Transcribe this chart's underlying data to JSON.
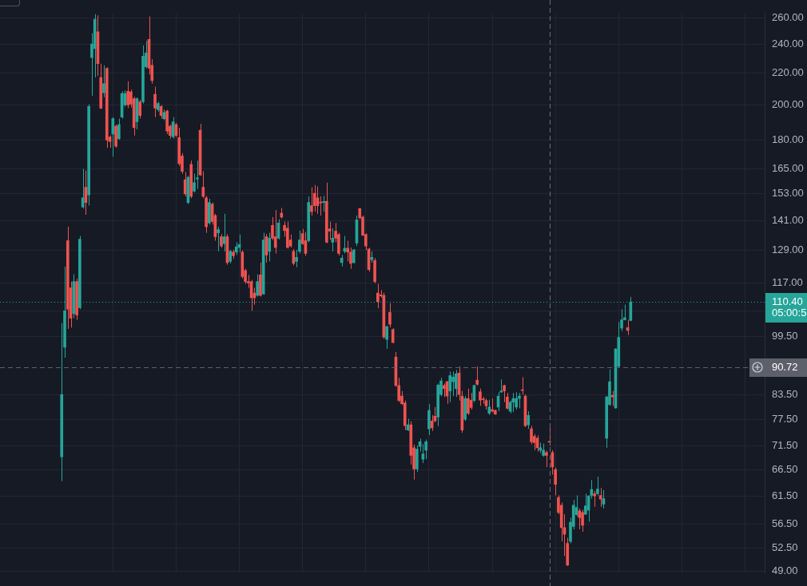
{
  "chart_data": {
    "type": "candlestick",
    "categories": [
      null,
      null,
      null,
      null,
      null,
      null,
      null,
      null,
      null,
      null,
      null,
      null,
      null,
      null,
      null,
      null,
      null,
      null,
      null,
      null,
      null,
      null,
      null,
      null,
      null,
      null,
      null,
      null,
      null,
      null,
      null,
      null,
      null,
      null,
      null,
      null,
      null,
      null,
      null,
      null,
      null,
      null,
      null,
      null,
      null,
      null,
      null,
      null,
      null,
      null,
      null,
      null,
      null,
      null,
      null,
      null,
      null,
      null,
      null,
      null,
      null,
      null,
      null,
      null,
      null,
      null,
      null,
      null,
      null,
      null,
      null,
      null,
      null,
      null,
      null,
      null,
      null,
      null,
      null,
      null,
      null,
      null,
      null,
      null,
      null,
      null,
      null,
      null,
      null,
      null,
      null,
      null,
      null,
      null,
      null,
      null,
      null,
      null,
      null,
      null,
      null,
      null,
      null,
      null,
      null,
      null,
      null,
      null,
      null,
      null,
      null,
      null,
      null,
      null,
      null,
      null,
      null,
      null,
      null,
      null,
      null,
      null,
      null,
      null,
      null,
      null,
      null,
      null,
      null,
      null,
      null,
      null,
      null,
      null,
      null,
      null,
      null,
      null,
      null,
      null,
      null,
      null,
      null,
      null,
      null,
      null,
      null,
      null,
      null,
      null,
      null,
      null,
      null,
      null,
      null,
      null,
      null,
      null,
      null,
      null,
      null,
      null,
      null,
      null,
      null,
      null,
      null,
      null,
      null,
      null,
      null,
      null,
      null,
      null,
      null,
      null,
      null,
      null,
      null,
      null,
      null,
      null,
      null,
      null,
      null,
      null,
      null,
      null,
      null,
      null,
      null,
      null,
      null,
      null,
      null,
      null,
      null,
      null,
      null,
      null,
      null,
      null,
      null,
      null,
      null,
      null,
      null,
      null,
      null,
      null,
      null,
      null,
      null,
      null,
      null,
      null,
      null,
      null,
      null,
      null,
      null,
      null,
      null,
      null,
      null,
      null,
      null,
      null,
      null,
      null,
      null,
      null,
      null,
      null,
      null,
      null,
      null,
      null,
      null,
      null,
      null,
      null,
      null,
      null,
      null,
      null,
      null,
      null,
      null,
      null,
      null,
      null,
      null,
      null
    ],
    "ohlc": [
      null,
      null,
      null,
      null,
      null,
      null,
      null,
      null,
      null,
      null,
      null,
      null,
      null,
      null,
      null,
      null,
      null,
      null,
      null,
      null,
      [
        69.2,
        103.6,
        64.3,
        83.5
      ],
      [
        96.3,
        122.8,
        93.3,
        107.5
      ],
      [
        132.8,
        138.5,
        101.8,
        108.0
      ],
      [
        115.2,
        117.4,
        102.2,
        105.1
      ],
      [
        106.6,
        120.0,
        105.1,
        117.4
      ],
      [
        117.4,
        118.4,
        104.6,
        106.1
      ],
      [
        108.5,
        134.7,
        108.0,
        133.4
      ],
      [
        147.0,
        164.9,
        146.3,
        151.1
      ],
      [
        156.0,
        164.1,
        143.6,
        149.0
      ],
      [
        152.5,
        200.5,
        147.6,
        199.1
      ],
      [
        230.7,
        248.3,
        205.6,
        240.4
      ],
      [
        237.1,
        263.0,
        217.3,
        259.0
      ],
      [
        249.4,
        262.0,
        218.3,
        226.5
      ],
      [
        217.3,
        226.5,
        197.5,
        198.1
      ],
      [
        207.5,
        225.4,
        204.7,
        213.3
      ],
      [
        223.4,
        224.0,
        175.8,
        179.9
      ],
      [
        181.6,
        182.5,
        175.8,
        179.1
      ],
      [
        183.2,
        192.8,
        171.1,
        191.9
      ],
      [
        187.6,
        188.5,
        175.8,
        176.6
      ],
      [
        180.7,
        191.9,
        180.0,
        188.5
      ],
      [
        192.8,
        208.4,
        191.9,
        207.0
      ],
      [
        200.0,
        209.0,
        199.0,
        207.0
      ],
      [
        208.4,
        214.8,
        198.1,
        200.0
      ],
      [
        208.0,
        209.5,
        198.5,
        200.5
      ],
      [
        203.8,
        205.0,
        182.4,
        186.7
      ],
      [
        190.1,
        204.5,
        185.8,
        203.8
      ],
      [
        201.9,
        203.0,
        192.0,
        193.7
      ],
      [
        201.9,
        239.3,
        200.9,
        231.7
      ],
      [
        224.4,
        242.6,
        223.4,
        233.9
      ],
      [
        243.7,
        261.2,
        219.3,
        223.4
      ],
      [
        225.4,
        229.6,
        213.3,
        215.3
      ],
      [
        206.6,
        211.3,
        192.8,
        198.1
      ],
      [
        197.2,
        202.0,
        196.0,
        200.9
      ],
      [
        199.1,
        200.0,
        191.9,
        193.7
      ],
      [
        191.9,
        197.2,
        191.0,
        195.5
      ],
      [
        196.4,
        197.0,
        183.2,
        184.9
      ],
      [
        187.6,
        188.5,
        180.7,
        182.4
      ],
      [
        181.6,
        192.8,
        180.7,
        190.1
      ],
      [
        188.5,
        189.5,
        181.5,
        182.4
      ],
      [
        181.2,
        186.7,
        166.4,
        167.6
      ],
      [
        171.5,
        173.0,
        162.5,
        163.7
      ],
      [
        159.6,
        163.4,
        151.8,
        152.9
      ],
      [
        149.0,
        161.5,
        148.3,
        160.8
      ],
      [
        167.2,
        169.1,
        151.0,
        151.8
      ],
      [
        154.2,
        162.6,
        153.6,
        158.2
      ],
      [
        160.0,
        169.1,
        155.3,
        160.5
      ],
      [
        185.3,
        188.9,
        161.5,
        161.9
      ],
      [
        156.0,
        163.7,
        151.1,
        151.8
      ],
      [
        151.1,
        152.0,
        136.0,
        138.5
      ],
      [
        140.1,
        150.7,
        139.4,
        149.0
      ],
      [
        148.3,
        149.0,
        139.4,
        140.7
      ],
      [
        143.3,
        144.0,
        132.8,
        134.4
      ],
      [
        136.0,
        138.5,
        128.6,
        137.3
      ],
      [
        134.4,
        135.5,
        130.0,
        130.7
      ],
      [
        131.6,
        144.0,
        128.6,
        134.4
      ],
      [
        134.4,
        135.5,
        123.5,
        124.3
      ],
      [
        124.8,
        129.2,
        124.0,
        128.6
      ],
      [
        128.3,
        129.2,
        125.7,
        126.9
      ],
      [
        128.3,
        132.2,
        127.2,
        130.4
      ],
      [
        130.1,
        135.3,
        128.3,
        131.3
      ],
      [
        128.3,
        129.0,
        118.5,
        119.2
      ],
      [
        121.4,
        122.0,
        116.6,
        117.4
      ],
      [
        117.4,
        119.8,
        115.2,
        116.9
      ],
      [
        117.4,
        118.0,
        107.5,
        111.8
      ],
      [
        113.4,
        115.2,
        109.5,
        111.8
      ],
      [
        112.6,
        120.0,
        112.2,
        117.4
      ],
      [
        119.8,
        124.3,
        112.2,
        112.6
      ],
      [
        113.1,
        136.0,
        112.8,
        133.1
      ],
      [
        134.4,
        135.5,
        124.3,
        127.2
      ],
      [
        128.6,
        136.0,
        124.8,
        133.8
      ],
      [
        139.1,
        142.6,
        133.1,
        133.8
      ],
      [
        134.4,
        145.7,
        127.8,
        130.1
      ],
      [
        133.8,
        141.7,
        133.3,
        140.1
      ],
      [
        144.3,
        146.6,
        142.0,
        142.6
      ],
      [
        139.1,
        140.7,
        134.4,
        136.9
      ],
      [
        137.9,
        140.7,
        129.7,
        130.1
      ],
      [
        133.1,
        135.3,
        130.1,
        130.7
      ],
      [
        128.6,
        129.5,
        123.3,
        124.0
      ],
      [
        124.8,
        129.2,
        122.6,
        126.3
      ],
      [
        128.6,
        136.9,
        127.8,
        133.1
      ],
      [
        135.7,
        137.6,
        131.2,
        131.6
      ],
      [
        132.8,
        136.4,
        126.9,
        127.8
      ],
      [
        132.8,
        151.8,
        132.2,
        149.0
      ],
      [
        147.6,
        156.0,
        143.3,
        145.0
      ],
      [
        153.2,
        157.1,
        145.0,
        147.6
      ],
      [
        151.1,
        156.4,
        144.0,
        147.6
      ],
      [
        149.2,
        151.8,
        143.3,
        148.8
      ],
      [
        149.0,
        152.0,
        145.0,
        149.5
      ],
      [
        149.6,
        158.2,
        131.8,
        132.2
      ],
      [
        137.6,
        140.7,
        133.1,
        136.7
      ],
      [
        132.2,
        137.9,
        128.6,
        133.8
      ],
      [
        136.7,
        140.1,
        132.2,
        133.8
      ],
      [
        135.3,
        136.0,
        127.0,
        127.8
      ],
      [
        124.3,
        127.2,
        122.9,
        126.0
      ],
      [
        128.6,
        134.7,
        127.8,
        129.8
      ],
      [
        129.8,
        132.8,
        124.8,
        128.3
      ],
      [
        128.3,
        130.1,
        122.0,
        124.0
      ],
      [
        124.3,
        129.5,
        124.0,
        129.2
      ],
      [
        131.9,
        143.3,
        130.7,
        141.4
      ],
      [
        146.3,
        146.6,
        141.7,
        142.3
      ],
      [
        142.6,
        143.3,
        134.7,
        135.0
      ],
      [
        135.3,
        135.8,
        129.2,
        130.7
      ],
      [
        129.5,
        130.0,
        121.0,
        121.7
      ],
      [
        125.4,
        128.6,
        124.3,
        126.3
      ],
      [
        125.1,
        126.0,
        116.8,
        117.4
      ],
      [
        113.4,
        116.6,
        108.3,
        110.5
      ],
      [
        112.8,
        114.4,
        111.8,
        112.4
      ],
      [
        112.6,
        113.5,
        98.8,
        99.3
      ],
      [
        98.6,
        102.7,
        95.8,
        102.5
      ],
      [
        107.0,
        110.0,
        102.2,
        103.2
      ],
      [
        101.6,
        102.0,
        97.4,
        97.7
      ],
      [
        93.5,
        94.9,
        85.5,
        85.8
      ],
      [
        85.8,
        87.8,
        81.6,
        82.0
      ],
      [
        83.1,
        84.4,
        80.9,
        81.2
      ],
      [
        81.4,
        82.0,
        75.0,
        76.0
      ],
      [
        75.0,
        77.6,
        74.8,
        76.2
      ],
      [
        76.2,
        77.0,
        67.6,
        69.5
      ],
      [
        71.1,
        71.8,
        64.6,
        66.7
      ],
      [
        66.7,
        71.6,
        66.1,
        70.8
      ],
      [
        71.4,
        73.1,
        70.3,
        72.4
      ],
      [
        68.7,
        71.9,
        67.9,
        69.8
      ],
      [
        70.6,
        72.9,
        68.7,
        72.4
      ],
      [
        75.3,
        81.1,
        73.9,
        79.6
      ],
      [
        77.1,
        78.5,
        74.8,
        75.5
      ],
      [
        78.2,
        80.4,
        76.8,
        77.1
      ],
      [
        78.0,
        86.3,
        75.9,
        85.9
      ],
      [
        83.5,
        87.8,
        83.1,
        87.0
      ],
      [
        85.8,
        86.3,
        82.9,
        85.0
      ],
      [
        86.8,
        87.0,
        81.2,
        83.1
      ],
      [
        84.4,
        89.5,
        81.6,
        88.4
      ],
      [
        86.8,
        89.5,
        83.1,
        88.0
      ],
      [
        85.0,
        89.9,
        82.9,
        88.9
      ],
      [
        89.1,
        90.9,
        82.0,
        83.5
      ],
      [
        83.1,
        84.4,
        74.4,
        75.0
      ],
      [
        77.5,
        83.1,
        77.1,
        82.5
      ],
      [
        82.5,
        85.0,
        78.5,
        78.9
      ],
      [
        82.1,
        83.9,
        79.8,
        80.3
      ],
      [
        82.0,
        86.0,
        81.6,
        85.8
      ],
      [
        87.2,
        90.9,
        85.8,
        86.1
      ],
      [
        84.2,
        85.0,
        80.7,
        82.1
      ],
      [
        82.4,
        82.9,
        81.2,
        82.2
      ],
      [
        82.0,
        82.5,
        79.8,
        80.7
      ],
      [
        78.9,
        82.2,
        78.5,
        80.4
      ],
      [
        79.8,
        82.5,
        79.2,
        79.4
      ],
      [
        79.6,
        79.8,
        78.5,
        78.7
      ],
      [
        80.4,
        84.1,
        79.4,
        83.1
      ],
      [
        84.1,
        87.4,
        84.0,
        84.4
      ],
      [
        85.8,
        86.0,
        81.6,
        84.4
      ],
      [
        82.9,
        83.9,
        79.8,
        80.1
      ],
      [
        79.4,
        82.0,
        78.9,
        81.6
      ],
      [
        81.6,
        83.9,
        79.2,
        82.5
      ],
      [
        80.4,
        84.1,
        79.8,
        82.5
      ],
      [
        82.5,
        83.9,
        80.1,
        83.1
      ],
      [
        84.7,
        88.0,
        83.5,
        84.5
      ],
      [
        83.1,
        83.5,
        75.7,
        76.0
      ],
      [
        76.2,
        79.4,
        75.3,
        78.4
      ],
      [
        75.3,
        76.0,
        71.9,
        72.4
      ],
      [
        73.6,
        74.1,
        70.6,
        72.2
      ],
      [
        73.2,
        73.8,
        70.3,
        71.1
      ],
      [
        70.6,
        72.2,
        70.0,
        71.1
      ],
      [
        69.5,
        72.0,
        69.2,
        70.6
      ],
      [
        70.1,
        70.5,
        67.1,
        69.5
      ],
      [
        72.5,
        75.7,
        71.6,
        72.3
      ],
      [
        70.1,
        70.6,
        65.6,
        67.1
      ],
      [
        66.6,
        67.0,
        61.6,
        63.7
      ],
      [
        61.2,
        61.6,
        58.2,
        58.5
      ],
      [
        59.8,
        60.3,
        53.6,
        55.9
      ],
      [
        55.9,
        58.2,
        51.3,
        54.8
      ],
      [
        53.3,
        54.2,
        49.8,
        49.9
      ],
      [
        53.6,
        57.6,
        53.3,
        56.8
      ],
      [
        56.1,
        60.8,
        55.6,
        59.8
      ],
      [
        58.1,
        61.6,
        57.8,
        59.4
      ],
      [
        58.8,
        59.2,
        55.6,
        57.6
      ],
      [
        58.5,
        59.0,
        55.2,
        56.3
      ],
      [
        58.2,
        61.9,
        58.1,
        59.7
      ],
      [
        58.9,
        61.6,
        56.9,
        61.5
      ],
      [
        61.6,
        64.5,
        61.0,
        62.7
      ],
      [
        61.9,
        62.4,
        59.5,
        61.5
      ],
      [
        61.9,
        65.2,
        61.6,
        62.8
      ],
      [
        61.6,
        63.0,
        59.5,
        60.9
      ],
      [
        60.0,
        62.6,
        59.2,
        61.0
      ],
      [
        73.2,
        83.1,
        71.1,
        82.9
      ],
      [
        81.0,
        90.1,
        80.7,
        86.8
      ],
      [
        83.3,
        84.4,
        80.7,
        82.9
      ],
      [
        80.2,
        96.0,
        80.0,
        95.8
      ],
      [
        90.9,
        103.9,
        90.7,
        99.2
      ],
      [
        102.0,
        108.0,
        101.1,
        104.6
      ],
      [
        104.6,
        109.5,
        104.4,
        105.3
      ],
      [
        102.2,
        104.6,
        99.9,
        101.3
      ],
      [
        104.4,
        112.1,
        104.2,
        110.4
      ],
      null,
      null,
      null,
      null,
      null,
      null,
      null,
      null,
      null,
      null,
      null,
      null,
      null,
      null,
      null,
      null,
      null,
      null,
      null,
      null,
      null,
      null,
      null,
      null,
      null,
      null,
      null,
      null,
      null,
      null,
      null,
      null,
      null,
      null,
      null,
      null,
      null,
      null,
      null,
      null,
      null,
      null,
      null,
      null
    ],
    "colors": [
      null,
      null,
      null,
      null,
      null,
      null,
      null,
      null,
      null,
      null,
      null,
      null,
      null,
      null,
      null,
      null,
      null,
      null,
      null,
      null,
      "#26a69a",
      "#26a69a",
      "#ef5350",
      "#ef5350",
      "#26a69a",
      "#ef5350",
      "#26a69a",
      "#26a69a",
      "#ef5350",
      "#26a69a",
      "#26a69a",
      "#26a69a",
      "#ef5350",
      "#ef5350",
      "#26a69a",
      "#ef5350",
      "#ef5350",
      "#26a69a",
      "#ef5350",
      "#26a69a",
      "#26a69a",
      "#26a69a",
      "#ef5350",
      "#ef5350",
      "#ef5350",
      "#26a69a",
      "#ef5350",
      "#26a69a",
      "#26a69a",
      "#ef5350",
      "#ef5350",
      "#ef5350",
      "#26a69a",
      "#ef5350",
      "#26a69a",
      "#ef5350",
      "#ef5350",
      "#26a69a",
      "#ef5350",
      "#ef5350",
      "#ef5350",
      "#ef5350",
      "#26a69a",
      "#ef5350",
      "#26a69a",
      "#26a69a",
      "#ef5350",
      "#ef5350",
      "#ef5350",
      "#26a69a",
      "#ef5350",
      "#ef5350",
      "#26a69a",
      "#ef5350",
      "#26a69a",
      "#ef5350",
      "#26a69a",
      "#ef5350",
      "#26a69a",
      "#26a69a",
      "#ef5350",
      "#ef5350",
      "#ef5350",
      "#ef5350",
      "#ef5350",
      "#26a69a",
      "#ef5350",
      "#26a69a",
      "#ef5350",
      "#26a69a",
      "#ef5350",
      "#ef5350",
      "#26a69a",
      "#ef5350",
      "#ef5350",
      "#ef5350",
      "#ef5350",
      "#ef5350",
      "#26a69a",
      "#26a69a",
      "#ef5350",
      "#ef5350",
      "#26a69a",
      "#ef5350",
      "#ef5350",
      "#ef5350",
      "#ef5350",
      "#26a69a",
      "#ef5350",
      "#ef5350",
      "#26a69a",
      "#ef5350",
      "#ef5350",
      "#26a69a",
      "#26a69a",
      "#ef5350",
      "#ef5350",
      "#26a69a",
      "#26a69a",
      "#ef5350",
      "#ef5350",
      "#ef5350",
      "#ef5350",
      "#26a69a",
      "#ef5350",
      "#ef5350",
      "#ef5350",
      "#ef5350",
      "#26a69a",
      "#ef5350",
      "#ef5350",
      "#ef5350",
      "#ef5350",
      "#ef5350",
      "#ef5350",
      "#26a69a",
      "#ef5350",
      "#ef5350",
      "#26a69a",
      "#26a69a",
      "#26a69a",
      "#26a69a",
      "#26a69a",
      "#ef5350",
      "#ef5350",
      "#26a69a",
      "#26a69a",
      "#ef5350",
      "#ef5350",
      "#26a69a",
      "#26a69a",
      "#26a69a",
      "#ef5350",
      "#ef5350",
      "#26a69a",
      "#ef5350",
      "#ef5350",
      "#26a69a",
      "#ef5350",
      "#ef5350",
      "#ef5350",
      "#ef5350",
      "#26a69a",
      "#ef5350",
      "#ef5350",
      "#26a69a",
      "#26a69a",
      "#ef5350",
      "#ef5350",
      "#26a69a",
      "#26a69a",
      "#26a69a",
      "#26a69a",
      "#ef5350",
      "#ef5350",
      "#26a69a",
      "#ef5350",
      "#ef5350",
      "#ef5350",
      "#26a69a",
      "#26a69a",
      "#ef5350",
      "#ef5350",
      "#ef5350",
      "#ef5350",
      "#ef5350",
      "#ef5350",
      "#ef5350",
      "#ef5350",
      "#26a69a",
      "#26a69a",
      "#26a69a",
      "#ef5350",
      "#ef5350",
      "#26a69a",
      "#26a69a",
      "#26a69a",
      "#ef5350",
      "#26a69a",
      "#ef5350",
      "#26a69a",
      "#26a69a",
      "#26a69a",
      "#ef5350",
      "#26a69a",
      "#26a69a",
      "#26a69a",
      "#26a69a",
      "#ef5350",
      "#26a69a",
      null,
      null,
      null,
      null,
      null,
      null,
      null,
      null,
      null,
      null,
      null,
      null,
      null,
      null,
      null,
      null,
      null,
      null,
      null,
      null,
      null,
      null,
      null,
      null,
      null,
      null,
      null,
      null,
      null,
      null,
      null,
      null,
      null,
      null,
      null,
      null,
      null,
      null,
      null,
      null,
      null,
      null,
      null,
      null
    ],
    "log": true,
    "ylim": [
      48.8,
      263.6
    ],
    "yticks": [
      {
        "value": 49,
        "label": "49.00"
      },
      {
        "value": 52.5,
        "label": "52.50"
      },
      {
        "value": 56.5,
        "label": "56.50"
      },
      {
        "value": 61.5,
        "label": "61.50"
      },
      {
        "value": 66.5,
        "label": "66.50"
      },
      {
        "value": 71.5,
        "label": "71.50"
      },
      {
        "value": 77.5,
        "label": "77.50"
      },
      {
        "value": 83.5,
        "label": "83.50"
      },
      {
        "value": 99.5,
        "label": "99.50"
      },
      {
        "value": 107.5,
        "label": null
      },
      {
        "value": 117,
        "label": "117.00"
      },
      {
        "value": 129,
        "label": "129.00"
      },
      {
        "value": 141,
        "label": "141.00"
      },
      {
        "value": 153,
        "label": "153.00"
      },
      {
        "value": 165,
        "label": "165.00"
      },
      {
        "value": 180,
        "label": "180.00"
      },
      {
        "value": 200,
        "label": "200.00"
      },
      {
        "value": 220,
        "label": "220.00"
      },
      {
        "value": 240,
        "label": "240.00"
      },
      {
        "value": 260,
        "label": "260.00"
      }
    ],
    "grid": true,
    "tick_labels": "y",
    "ref_lines": [
      {
        "axis": "y",
        "value": 110.4,
        "label": "110.40",
        "color": "#26a69a",
        "line_style": "dotted"
      },
      {
        "axis": "y",
        "value": 90.72,
        "label": "90.72",
        "color": "#5d606b",
        "line_style": "dashed"
      }
    ],
    "annotations": [
      "05:00:5"
    ]
  }
}
